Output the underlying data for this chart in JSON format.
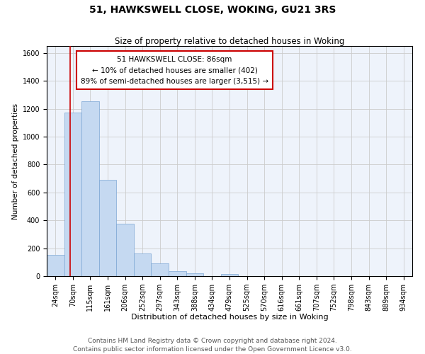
{
  "title": "51, HAWKSWELL CLOSE, WOKING, GU21 3RS",
  "subtitle": "Size of property relative to detached houses in Woking",
  "xlabel": "Distribution of detached houses by size in Woking",
  "ylabel": "Number of detached properties",
  "bar_labels": [
    "24sqm",
    "70sqm",
    "115sqm",
    "161sqm",
    "206sqm",
    "252sqm",
    "297sqm",
    "343sqm",
    "388sqm",
    "434sqm",
    "479sqm",
    "525sqm",
    "570sqm",
    "616sqm",
    "661sqm",
    "707sqm",
    "752sqm",
    "798sqm",
    "843sqm",
    "889sqm",
    "934sqm"
  ],
  "bar_values": [
    152,
    1175,
    1255,
    688,
    375,
    160,
    90,
    38,
    22,
    0,
    14,
    0,
    0,
    0,
    0,
    0,
    0,
    0,
    0,
    0,
    0
  ],
  "bar_color": "#c5d9f1",
  "bar_edge_color": "#7da6d4",
  "annotation_box_text": "51 HAWKSWELL CLOSE: 86sqm\n← 10% of detached houses are smaller (402)\n89% of semi-detached houses are larger (3,515) →",
  "annotation_box_color": "#ffffff",
  "annotation_box_edge_color": "#cc0000",
  "vline_color": "#cc0000",
  "ylim": [
    0,
    1650
  ],
  "yticks": [
    0,
    200,
    400,
    600,
    800,
    1000,
    1200,
    1400,
    1600
  ],
  "grid_color": "#cccccc",
  "bg_color": "#eef3fb",
  "footer_line1": "Contains HM Land Registry data © Crown copyright and database right 2024.",
  "footer_line2": "Contains public sector information licensed under the Open Government Licence v3.0.",
  "title_fontsize": 10,
  "subtitle_fontsize": 8.5,
  "xlabel_fontsize": 8,
  "ylabel_fontsize": 7.5,
  "tick_fontsize": 7,
  "annotation_fontsize": 7.5,
  "footer_fontsize": 6.5
}
